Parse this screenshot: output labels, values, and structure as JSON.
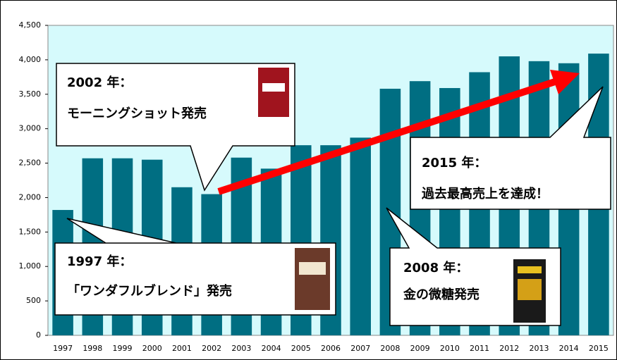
{
  "chart_data": {
    "type": "bar",
    "categories": [
      "1997",
      "1998",
      "1999",
      "2000",
      "2001",
      "2002",
      "2003",
      "2004",
      "2005",
      "2006",
      "2007",
      "2008",
      "2009",
      "2010",
      "2011",
      "2012",
      "2013",
      "2014",
      "2015"
    ],
    "values": [
      1820,
      2570,
      2570,
      2550,
      2150,
      2050,
      2580,
      2420,
      2760,
      2760,
      2870,
      3580,
      3690,
      3590,
      3820,
      4050,
      3980,
      3950,
      4090
    ],
    "color": "#006e82",
    "ylim": [
      0,
      4500
    ],
    "yticks": [
      0,
      500,
      {
        "value": 1000,
        "label": "1,000"
      },
      {
        "value": 1500,
        "label": "1,500"
      },
      {
        "value": 2000,
        "label": "2,000"
      },
      {
        "value": 2500,
        "label": "2,500"
      },
      {
        "value": 3000,
        "label": "3,000"
      },
      {
        "value": 3500,
        "label": "3,500"
      },
      {
        "value": 4000,
        "label": "4,000"
      },
      {
        "value": 4500,
        "label": "4,500"
      }
    ],
    "grid": false,
    "annotations": [
      {
        "title": "2002 年：",
        "text": "モーニングショット発売"
      },
      {
        "title": "1997 年：",
        "text": "「ワンダフルブレンド」発売"
      },
      {
        "title": "2008 年：",
        "text": "金の微糖発売"
      },
      {
        "title": "2015 年：",
        "text": "過去最高売上を達成！"
      }
    ]
  }
}
